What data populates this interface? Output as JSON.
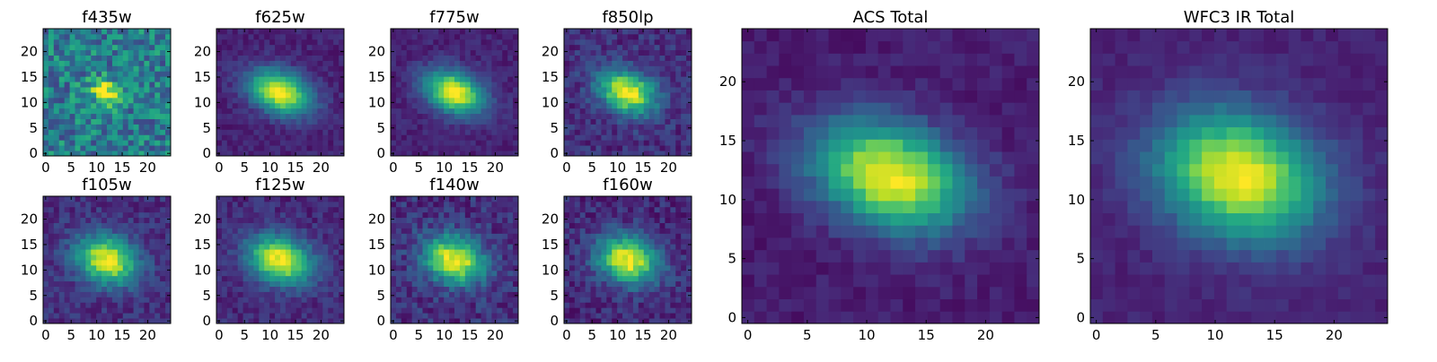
{
  "figure": {
    "description_note": ""
  },
  "chart_data": [
    {
      "type": "heatmap",
      "title": "f435w",
      "xticks": [
        0,
        5,
        10,
        15,
        20
      ],
      "yticks": [
        0,
        5,
        10,
        15,
        20
      ],
      "xlim": [
        0,
        24
      ],
      "ylim": [
        0,
        24
      ],
      "grid_size": 24,
      "center": [
        12,
        12
      ],
      "ellipse": {
        "sigma_major": 2.2,
        "sigma_minor": 1.6,
        "angle_deg": -20
      },
      "background_level": 0.42,
      "noise_level": 0.22,
      "colormap": "viridis"
    },
    {
      "type": "heatmap",
      "title": "f625w",
      "xticks": [
        0,
        5,
        10,
        15,
        20
      ],
      "yticks": [
        0,
        5,
        10,
        15,
        20
      ],
      "xlim": [
        0,
        24
      ],
      "ylim": [
        0,
        24
      ],
      "grid_size": 24,
      "center": [
        12,
        12
      ],
      "ellipse": {
        "sigma_major": 4.2,
        "sigma_minor": 2.6,
        "angle_deg": -22
      },
      "background_level": 0.1,
      "noise_level": 0.06,
      "colormap": "viridis"
    },
    {
      "type": "heatmap",
      "title": "f775w",
      "xticks": [
        0,
        5,
        10,
        15,
        20
      ],
      "yticks": [
        0,
        5,
        10,
        15,
        20
      ],
      "xlim": [
        0,
        24
      ],
      "ylim": [
        0,
        24
      ],
      "grid_size": 24,
      "center": [
        12,
        12
      ],
      "ellipse": {
        "sigma_major": 4.0,
        "sigma_minor": 2.6,
        "angle_deg": -22
      },
      "background_level": 0.1,
      "noise_level": 0.06,
      "colormap": "viridis"
    },
    {
      "type": "heatmap",
      "title": "f850lp",
      "xticks": [
        0,
        5,
        10,
        15,
        20
      ],
      "yticks": [
        0,
        5,
        10,
        15,
        20
      ],
      "xlim": [
        0,
        24
      ],
      "ylim": [
        0,
        24
      ],
      "grid_size": 24,
      "center": [
        12,
        12
      ],
      "ellipse": {
        "sigma_major": 3.8,
        "sigma_minor": 2.6,
        "angle_deg": -22
      },
      "background_level": 0.14,
      "noise_level": 0.1,
      "colormap": "viridis"
    },
    {
      "type": "heatmap",
      "title": "f105w",
      "xticks": [
        0,
        5,
        10,
        15,
        20
      ],
      "yticks": [
        0,
        5,
        10,
        15,
        20
      ],
      "xlim": [
        0,
        24
      ],
      "ylim": [
        0,
        24
      ],
      "grid_size": 24,
      "center": [
        12,
        12
      ],
      "ellipse": {
        "sigma_major": 4.0,
        "sigma_minor": 3.0,
        "angle_deg": -20
      },
      "background_level": 0.14,
      "noise_level": 0.09,
      "colormap": "viridis"
    },
    {
      "type": "heatmap",
      "title": "f125w",
      "xticks": [
        0,
        5,
        10,
        15,
        20
      ],
      "yticks": [
        0,
        5,
        10,
        15,
        20
      ],
      "xlim": [
        0,
        24
      ],
      "ylim": [
        0,
        24
      ],
      "grid_size": 24,
      "center": [
        12,
        12
      ],
      "ellipse": {
        "sigma_major": 4.2,
        "sigma_minor": 3.0,
        "angle_deg": -20
      },
      "background_level": 0.12,
      "noise_level": 0.08,
      "colormap": "viridis"
    },
    {
      "type": "heatmap",
      "title": "f140w",
      "xticks": [
        0,
        5,
        10,
        15,
        20
      ],
      "yticks": [
        0,
        5,
        10,
        15,
        20
      ],
      "xlim": [
        0,
        24
      ],
      "ylim": [
        0,
        24
      ],
      "grid_size": 24,
      "center": [
        12,
        12
      ],
      "ellipse": {
        "sigma_major": 4.0,
        "sigma_minor": 3.0,
        "angle_deg": -20
      },
      "background_level": 0.14,
      "noise_level": 0.11,
      "colormap": "viridis"
    },
    {
      "type": "heatmap",
      "title": "f160w",
      "xticks": [
        0,
        5,
        10,
        15,
        20
      ],
      "yticks": [
        0,
        5,
        10,
        15,
        20
      ],
      "xlim": [
        0,
        24
      ],
      "ylim": [
        0,
        24
      ],
      "grid_size": 24,
      "center": [
        12,
        12
      ],
      "ellipse": {
        "sigma_major": 4.0,
        "sigma_minor": 3.0,
        "angle_deg": -20
      },
      "background_level": 0.12,
      "noise_level": 0.1,
      "colormap": "viridis"
    },
    {
      "type": "heatmap",
      "title": "ACS Total",
      "xticks": [
        0,
        5,
        10,
        15,
        20
      ],
      "yticks": [
        0,
        5,
        10,
        15,
        20
      ],
      "xlim": [
        0,
        24
      ],
      "ylim": [
        0,
        24
      ],
      "grid_size": 24,
      "center": [
        12,
        12
      ],
      "ellipse": {
        "sigma_major": 4.4,
        "sigma_minor": 2.8,
        "angle_deg": -20
      },
      "background_level": 0.08,
      "noise_level": 0.05,
      "colormap": "viridis"
    },
    {
      "type": "heatmap",
      "title": "WFC3 IR Total",
      "xticks": [
        0,
        5,
        10,
        15,
        20
      ],
      "yticks": [
        0,
        5,
        10,
        15,
        20
      ],
      "xlim": [
        0,
        24
      ],
      "ylim": [
        0,
        24
      ],
      "grid_size": 24,
      "center": [
        12,
        12
      ],
      "ellipse": {
        "sigma_major": 4.6,
        "sigma_minor": 3.4,
        "angle_deg": -18
      },
      "background_level": 0.1,
      "noise_level": 0.04,
      "colormap": "viridis"
    }
  ]
}
